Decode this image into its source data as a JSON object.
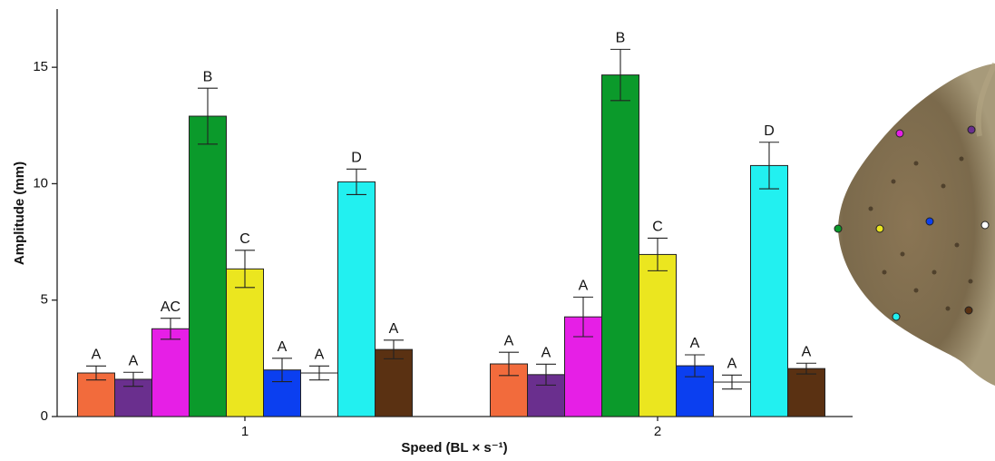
{
  "chart_data": {
    "type": "bar",
    "x_label": "Speed (BL × s⁻¹)",
    "y_label": "Amplitude (mm)",
    "categories": [
      "1",
      "2"
    ],
    "ylim": [
      0,
      17.5
    ],
    "yticks": [
      0,
      5,
      10,
      15
    ],
    "series": [
      {
        "color": "#f26b3c",
        "values": [
          1.87,
          2.26
        ],
        "errors": [
          0.3,
          0.5
        ],
        "letters": [
          "A",
          "A"
        ]
      },
      {
        "color": "#6a2f8e",
        "values": [
          1.6,
          1.8
        ],
        "errors": [
          0.3,
          0.45
        ],
        "letters": [
          "A",
          "A"
        ]
      },
      {
        "color": "#e61fe6",
        "values": [
          3.77,
          4.28
        ],
        "errors": [
          0.45,
          0.85
        ],
        "letters": [
          "AC",
          "A"
        ]
      },
      {
        "color": "#0b9a2b",
        "values": [
          12.9,
          14.67
        ],
        "errors": [
          1.2,
          1.1
        ],
        "letters": [
          "B",
          "B"
        ]
      },
      {
        "color": "#ebe61f",
        "values": [
          6.34,
          6.96
        ],
        "errors": [
          0.8,
          0.7
        ],
        "letters": [
          "C",
          "C"
        ]
      },
      {
        "color": "#0b3ff0",
        "values": [
          2.0,
          2.18
        ],
        "errors": [
          0.5,
          0.47
        ],
        "letters": [
          "A",
          "A"
        ]
      },
      {
        "color": "#ffffff",
        "values": [
          1.87,
          1.48
        ],
        "errors": [
          0.3,
          0.3
        ],
        "letters": [
          "A",
          "A"
        ]
      },
      {
        "color": "#22f0f0",
        "values": [
          10.08,
          10.78
        ],
        "errors": [
          0.55,
          1.0
        ],
        "letters": [
          "D",
          "D"
        ]
      },
      {
        "color": "#5a3112",
        "values": [
          2.88,
          2.06
        ],
        "errors": [
          0.4,
          0.23
        ],
        "letters": [
          "A",
          "A"
        ]
      }
    ]
  }
}
